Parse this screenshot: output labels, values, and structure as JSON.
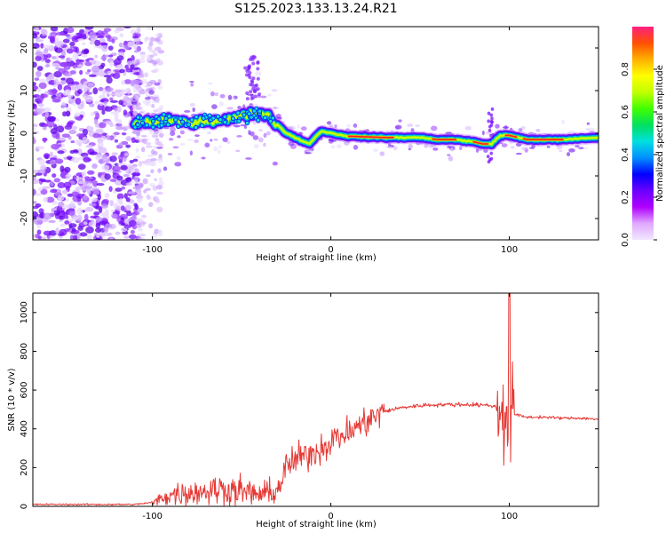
{
  "title": "S125.2023.133.13.24.R21",
  "colors": {
    "snr_line": "#e53935",
    "ridge": "#ff2020",
    "cbar_stops": [
      "#f0e8ff",
      "#e0a8ff",
      "#b000ff",
      "#6a00ff",
      "#0000ff",
      "#0090ff",
      "#00e0e0",
      "#00e060",
      "#40ff00",
      "#c0ff00",
      "#ffff00",
      "#ffb000",
      "#ff5000",
      "#ff2080"
    ]
  },
  "chart_data": [
    {
      "type": "heatmap",
      "xlabel": "Height of straight line (km)",
      "ylabel": "Frequency (Hz)",
      "xlim": [
        -167,
        150
      ],
      "ylim": [
        -25,
        25
      ],
      "x_ticks": [
        -100,
        0,
        100
      ],
      "y_ticks": [
        -20,
        -10,
        0,
        10,
        20
      ],
      "colorbar": {
        "label": "Normalized spectral amplitude",
        "range": [
          0,
          1
        ],
        "ticks": [
          "0.0",
          "0.2",
          "0.4",
          "0.6",
          "0.8"
        ]
      },
      "ridge_path": [
        [
          -110,
          2.5
        ],
        [
          -100,
          2.5
        ],
        [
          -90,
          3
        ],
        [
          -80,
          2.5
        ],
        [
          -70,
          3
        ],
        [
          -60,
          3
        ],
        [
          -50,
          4
        ],
        [
          -45,
          4.5
        ],
        [
          -40,
          5
        ],
        [
          -35,
          4
        ],
        [
          -30,
          2
        ],
        [
          -25,
          0
        ],
        [
          -20,
          -1
        ],
        [
          -15,
          -2
        ],
        [
          -12,
          -2.5
        ],
        [
          -8,
          -0.5
        ],
        [
          -5,
          0.5
        ],
        [
          0,
          0
        ],
        [
          10,
          -0.7
        ],
        [
          30,
          -1
        ],
        [
          50,
          -1
        ],
        [
          60,
          -1.5
        ],
        [
          70,
          -1.5
        ],
        [
          80,
          -2
        ],
        [
          85,
          -2.5
        ],
        [
          90,
          -2.5
        ],
        [
          95,
          -0.5
        ],
        [
          100,
          -0.5
        ],
        [
          105,
          -1
        ],
        [
          110,
          -1.5
        ],
        [
          130,
          -1.5
        ],
        [
          150,
          -1
        ]
      ]
    },
    {
      "type": "line",
      "xlabel": "Height of straight line (km)",
      "ylabel": "SNR (10 * v/v)",
      "xlim": [
        -167,
        150
      ],
      "ylim": [
        0,
        1100
      ],
      "x_ticks": [
        -100,
        0,
        100
      ],
      "y_ticks": [
        0,
        200,
        400,
        600,
        800,
        1000
      ],
      "series": [
        {
          "trend": [
            [
              -167,
              10
            ],
            [
              -110,
              10
            ],
            [
              -100,
              20
            ],
            [
              -90,
              60
            ],
            [
              -80,
              70
            ],
            [
              -70,
              80
            ],
            [
              -60,
              90
            ],
            [
              -50,
              80
            ],
            [
              -40,
              60
            ],
            [
              -30,
              80
            ],
            [
              -25,
              200
            ],
            [
              -20,
              240
            ],
            [
              -15,
              260
            ],
            [
              -10,
              280
            ],
            [
              -5,
              300
            ],
            [
              0,
              340
            ],
            [
              10,
              380
            ],
            [
              20,
              440
            ],
            [
              30,
              490
            ],
            [
              40,
              510
            ],
            [
              50,
              520
            ],
            [
              60,
              525
            ],
            [
              70,
              525
            ],
            [
              80,
              525
            ],
            [
              90,
              520
            ],
            [
              95,
              500
            ],
            [
              98,
              500
            ],
            [
              100,
              480
            ],
            [
              102,
              480
            ],
            [
              105,
              470
            ],
            [
              110,
              460
            ],
            [
              120,
              460
            ],
            [
              130,
              455
            ],
            [
              140,
              455
            ],
            [
              150,
              450
            ]
          ]
        }
      ]
    }
  ]
}
